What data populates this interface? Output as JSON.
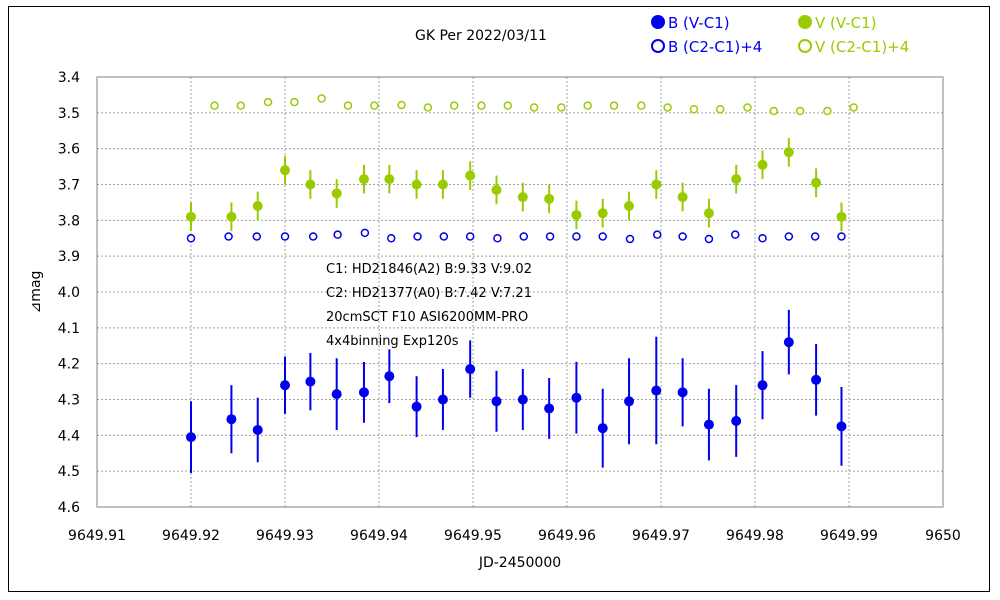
{
  "chart_data": {
    "type": "scatter",
    "title": "GK Per   2022/03/11",
    "xlabel": "JD-2450000",
    "ylabel": "⊿mag",
    "xlim": [
      9649.91,
      9650.0
    ],
    "ylim": [
      3.4,
      4.6
    ],
    "y_inverted": true,
    "grid": true,
    "legend_position": "top-right",
    "x_ticks": [
      9649.91,
      9649.92,
      9649.93,
      9649.94,
      9649.95,
      9649.96,
      9649.97,
      9649.98,
      9649.99,
      9650.0
    ],
    "x_tick_labels": [
      "9649.91",
      "9649.92",
      "9649.93",
      "9649.94",
      "9649.95",
      "9649.96",
      "9649.97",
      "9649.98",
      "9649.99",
      "9650"
    ],
    "y_ticks": [
      3.4,
      3.5,
      3.6,
      3.7,
      3.8,
      3.9,
      4.0,
      4.1,
      4.2,
      4.3,
      4.4,
      4.5,
      4.6
    ],
    "y_tick_labels": [
      "3.4",
      "3.5",
      "3.6",
      "3.7",
      "3.8",
      "3.9",
      "4.0",
      "4.1",
      "4.2",
      "4.3",
      "4.4",
      "4.5",
      "4.6"
    ],
    "annotations": [
      "C1: HD21846(A2) B:9.33 V:9.02",
      "C2: HD21377(A0) B:7.42 V:7.21",
      "20cmSCT F10 ASI6200MM-PRO",
      "4x4binning  Exp120s"
    ],
    "series": [
      {
        "name": "B (V-C1)",
        "color": "#0000ee",
        "marker": "filled-circle",
        "x": [
          9649.92,
          9649.9243,
          9649.9271,
          9649.93,
          9649.9327,
          9649.9355,
          9649.9384,
          9649.9411,
          9649.944,
          9649.9468,
          9649.9497,
          9649.9525,
          9649.9553,
          9649.9581,
          9649.961,
          9649.9638,
          9649.9666,
          9649.9695,
          9649.9723,
          9649.9751,
          9649.978,
          9649.9808,
          9649.9836,
          9649.9865,
          9649.9892
        ],
        "values": [
          4.405,
          4.355,
          4.385,
          4.26,
          4.25,
          4.285,
          4.28,
          4.235,
          4.32,
          4.3,
          4.215,
          4.305,
          4.3,
          4.325,
          4.295,
          4.38,
          4.305,
          4.275,
          4.28,
          4.37,
          4.36,
          4.26,
          4.14,
          4.245,
          4.375
        ],
        "errors": [
          0.1,
          0.095,
          0.09,
          0.08,
          0.08,
          0.1,
          0.085,
          0.075,
          0.085,
          0.085,
          0.08,
          0.085,
          0.085,
          0.085,
          0.1,
          0.11,
          0.12,
          0.15,
          0.095,
          0.1,
          0.1,
          0.095,
          0.09,
          0.1,
          0.11
        ]
      },
      {
        "name": "V (V-C1)",
        "color": "#99cc00",
        "marker": "filled-circle",
        "x": [
          9649.92,
          9649.9243,
          9649.9271,
          9649.93,
          9649.9327,
          9649.9355,
          9649.9384,
          9649.9411,
          9649.944,
          9649.9468,
          9649.9497,
          9649.9525,
          9649.9553,
          9649.9581,
          9649.961,
          9649.9638,
          9649.9666,
          9649.9695,
          9649.9723,
          9649.9751,
          9649.978,
          9649.9808,
          9649.9836,
          9649.9865,
          9649.9892
        ],
        "values": [
          3.79,
          3.79,
          3.76,
          3.66,
          3.7,
          3.725,
          3.685,
          3.685,
          3.7,
          3.7,
          3.675,
          3.715,
          3.735,
          3.74,
          3.785,
          3.78,
          3.76,
          3.7,
          3.735,
          3.78,
          3.685,
          3.645,
          3.61,
          3.695,
          3.79
        ]
      },
      {
        "name": "B (C2-C1)+4",
        "color": "#0000ee",
        "marker": "open-circle",
        "x": [
          9649.92,
          9649.924,
          9649.927,
          9649.93,
          9649.933,
          9649.9356,
          9649.9385,
          9649.9413,
          9649.9441,
          9649.9469,
          9649.9497,
          9649.9526,
          9649.9554,
          9649.9582,
          9649.961,
          9649.9638,
          9649.9667,
          9649.9696,
          9649.9723,
          9649.9751,
          9649.9779,
          9649.9808,
          9649.9836,
          9649.9864,
          9649.9892
        ],
        "values": [
          3.85,
          3.845,
          3.845,
          3.845,
          3.845,
          3.84,
          3.835,
          3.85,
          3.845,
          3.845,
          3.845,
          3.85,
          3.845,
          3.845,
          3.845,
          3.845,
          3.852,
          3.84,
          3.845,
          3.852,
          3.84,
          3.85,
          3.845,
          3.845,
          3.845
        ]
      },
      {
        "name": "V (C2-C1)+4",
        "color": "#99cc00",
        "marker": "open-circle",
        "x": [
          9649.9225,
          9649.9253,
          9649.9282,
          9649.931,
          9649.9339,
          9649.9367,
          9649.9395,
          9649.9424,
          9649.9452,
          9649.948,
          9649.9509,
          9649.9537,
          9649.9565,
          9649.9594,
          9649.9622,
          9649.965,
          9649.9679,
          9649.9707,
          9649.9735,
          9649.9763,
          9649.9792,
          9649.982,
          9649.9848,
          9649.9877,
          9649.9905
        ],
        "values": [
          3.48,
          3.48,
          3.47,
          3.47,
          3.46,
          3.48,
          3.48,
          3.478,
          3.485,
          3.48,
          3.48,
          3.48,
          3.485,
          3.485,
          3.48,
          3.48,
          3.48,
          3.485,
          3.49,
          3.49,
          3.485,
          3.495,
          3.495,
          3.495,
          3.485
        ]
      }
    ]
  }
}
